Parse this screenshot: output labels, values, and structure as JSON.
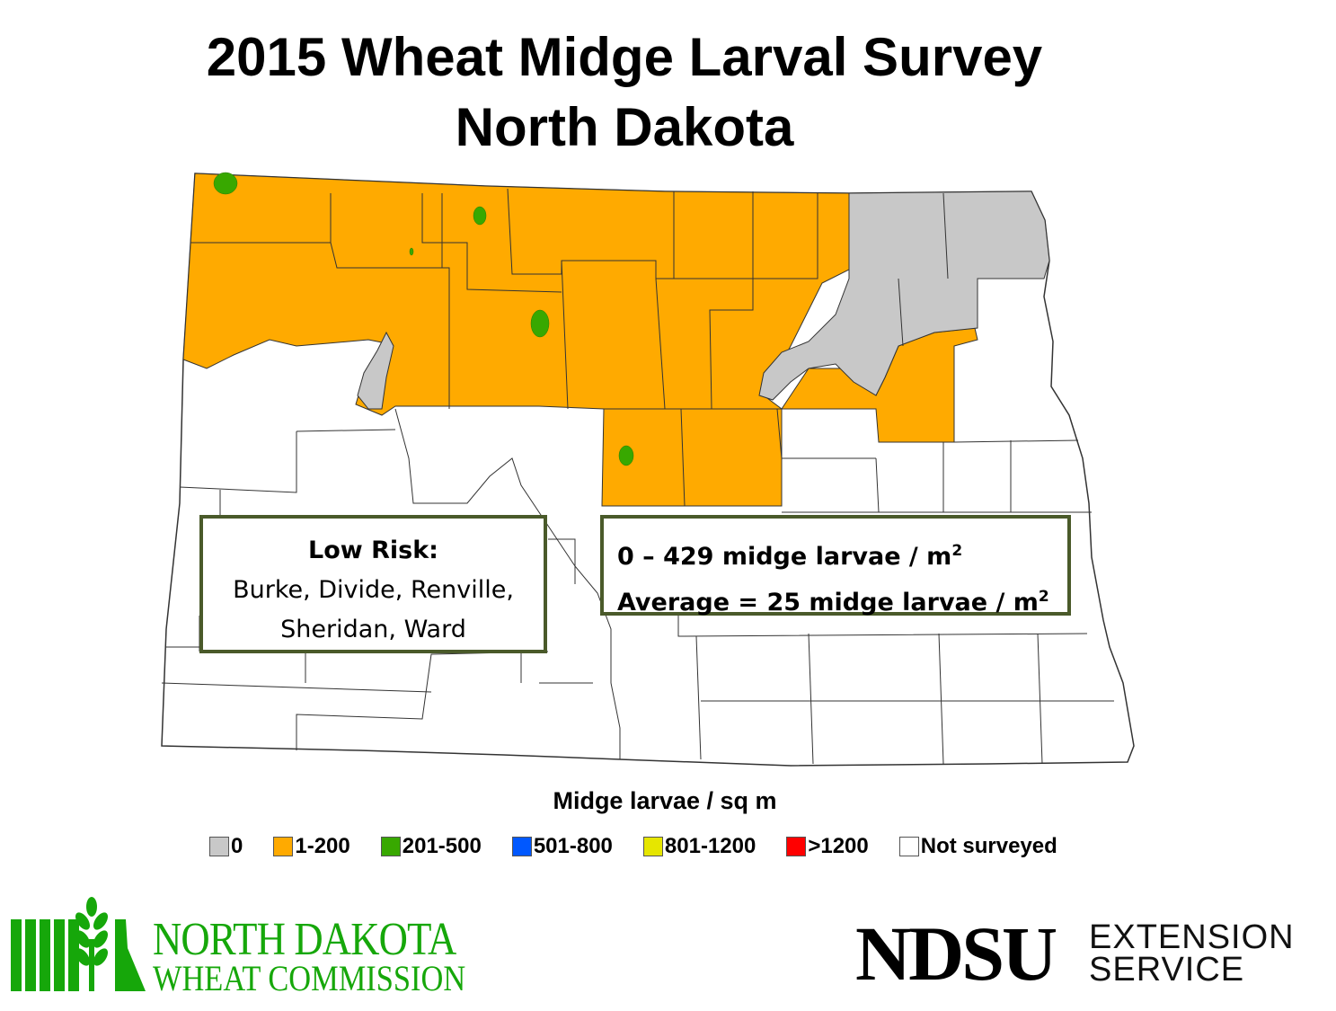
{
  "title": {
    "line1": "2015 Wheat Midge Larval Survey",
    "line2": "North Dakota"
  },
  "info_risk": {
    "heading": "Low Risk:",
    "line1": "Burke, Divide, Renville,",
    "line2": "Sheridan, Ward"
  },
  "info_stats": {
    "line1_text": "0 – 429 midge larvae / m",
    "line2_text": "Average = 25 midge larvae / m",
    "superscript": "2"
  },
  "legend": {
    "title": "Midge larvae / sq m",
    "items": [
      {
        "label": "0",
        "color": "#c8c8c8"
      },
      {
        "label": "1-200",
        "color": "#ffaa00"
      },
      {
        "label": "201-500",
        "color": "#38a800"
      },
      {
        "label": "501-800",
        "color": "#0058ff"
      },
      {
        "label": "801-1200",
        "color": "#e6e600"
      },
      {
        "label": ">1200",
        "color": "#ff0000"
      },
      {
        "label": "Not surveyed",
        "color": "#ffffff"
      }
    ]
  },
  "logos": {
    "ndwc_line1": "NORTH DAKOTA",
    "ndwc_line2": "WHEAT COMMISSION",
    "ndsu_name": "NDSU",
    "ndsu_line1": "EXTENSION",
    "ndsu_line2": "SERVICE"
  },
  "colors": {
    "low_zero": "#c8c8c8",
    "surveyed_low": "#ffaa00",
    "medium": "#38a800",
    "box_border": "#4a5a2a",
    "brand_green": "#16a70a"
  }
}
